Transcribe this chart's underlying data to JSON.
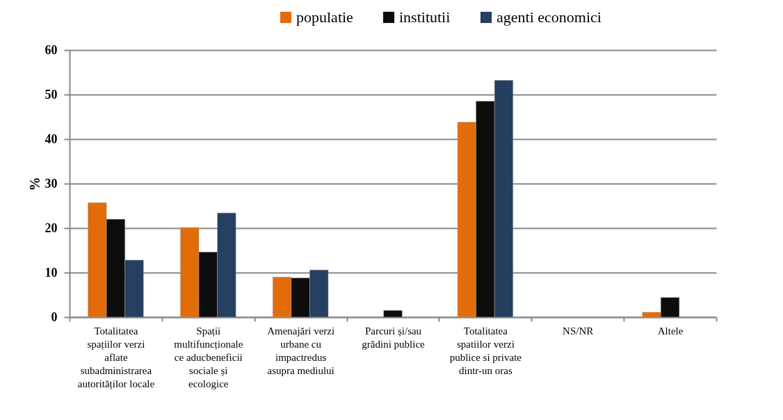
{
  "chart_data": {
    "type": "bar",
    "ylabel": "%",
    "categories": [
      "Totalitatea spațiilor verzi aflate subadministrarea autorităților locale",
      "Spații multifuncționale ce aducbeneficii sociale și ecologice",
      "Amenajări verzi urbane cu impactredus asupra mediului",
      "Parcuri și/sau grădini publice",
      "Totalitatea spatiilor verzi publice si private dintr-un oras",
      "NS/NR",
      "Altele"
    ],
    "series": [
      {
        "name": "populatie",
        "color": "#e36c0a",
        "values": [
          25.7,
          20.1,
          9.0,
          null,
          43.8,
          null,
          1.1
        ]
      },
      {
        "name": "institutii",
        "color": "#0d0d0d",
        "values": [
          22.0,
          14.6,
          8.8,
          1.5,
          48.5,
          null,
          4.4
        ]
      },
      {
        "name": "agenti economici",
        "color": "#243f60",
        "values": [
          12.8,
          23.4,
          10.6,
          null,
          53.2,
          null,
          null
        ]
      }
    ],
    "ylim": [
      0,
      60
    ],
    "yticks": [
      0,
      10,
      20,
      30,
      40,
      50,
      60
    ],
    "grid": "y",
    "legend": "top"
  }
}
